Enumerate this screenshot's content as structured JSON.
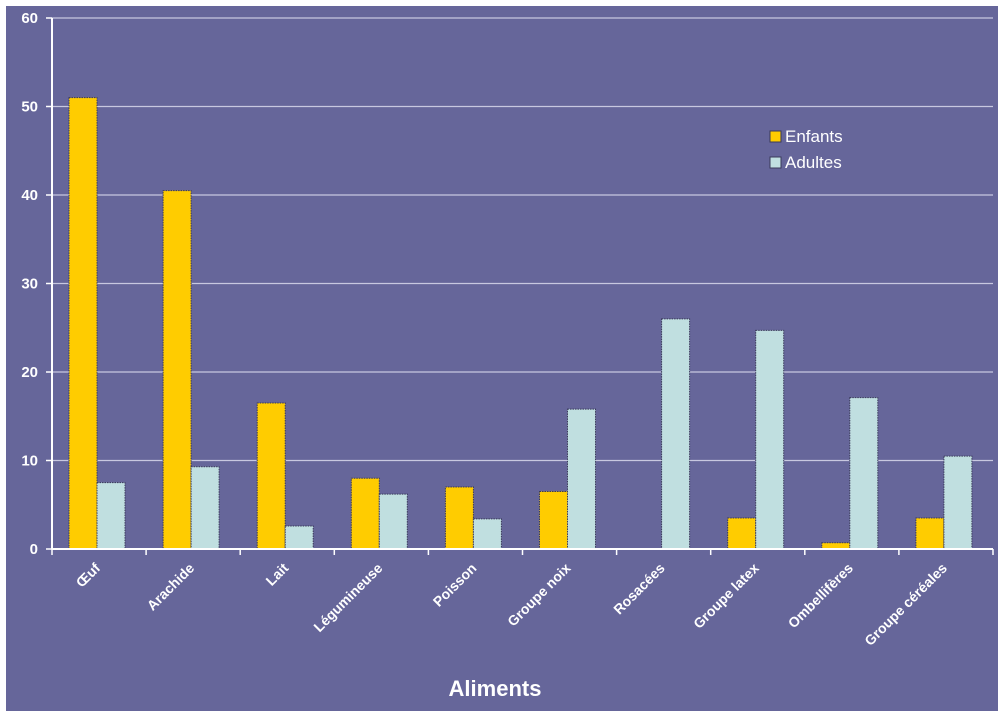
{
  "chart_data": {
    "type": "bar",
    "xlabel": "Aliments",
    "ylabel": "",
    "ylim": [
      0,
      60
    ],
    "yticks": [
      0,
      10,
      20,
      30,
      40,
      50,
      60
    ],
    "grid": true,
    "legend_position": "top-right",
    "categories": [
      "Œuf",
      "Arachide",
      "Lait",
      "Légumineuse",
      "Poisson",
      "Groupe noix",
      "Rosacées",
      "Groupe latex",
      "Ombellifères",
      "Groupe céréales"
    ],
    "series": [
      {
        "name": "Enfants",
        "color": "#ffcc00",
        "values": [
          51,
          40.5,
          16.5,
          8,
          7,
          6.5,
          0,
          3.5,
          0.7,
          3.5
        ]
      },
      {
        "name": "Adultes",
        "color": "#c0dfe0",
        "values": [
          7.5,
          9.3,
          2.6,
          6.2,
          3.4,
          15.8,
          26,
          24.7,
          17.1,
          10.5
        ]
      }
    ],
    "colors": {
      "background": "#66669a",
      "gridline": "#c8c8e0",
      "axis_text": "#ffffff"
    }
  }
}
